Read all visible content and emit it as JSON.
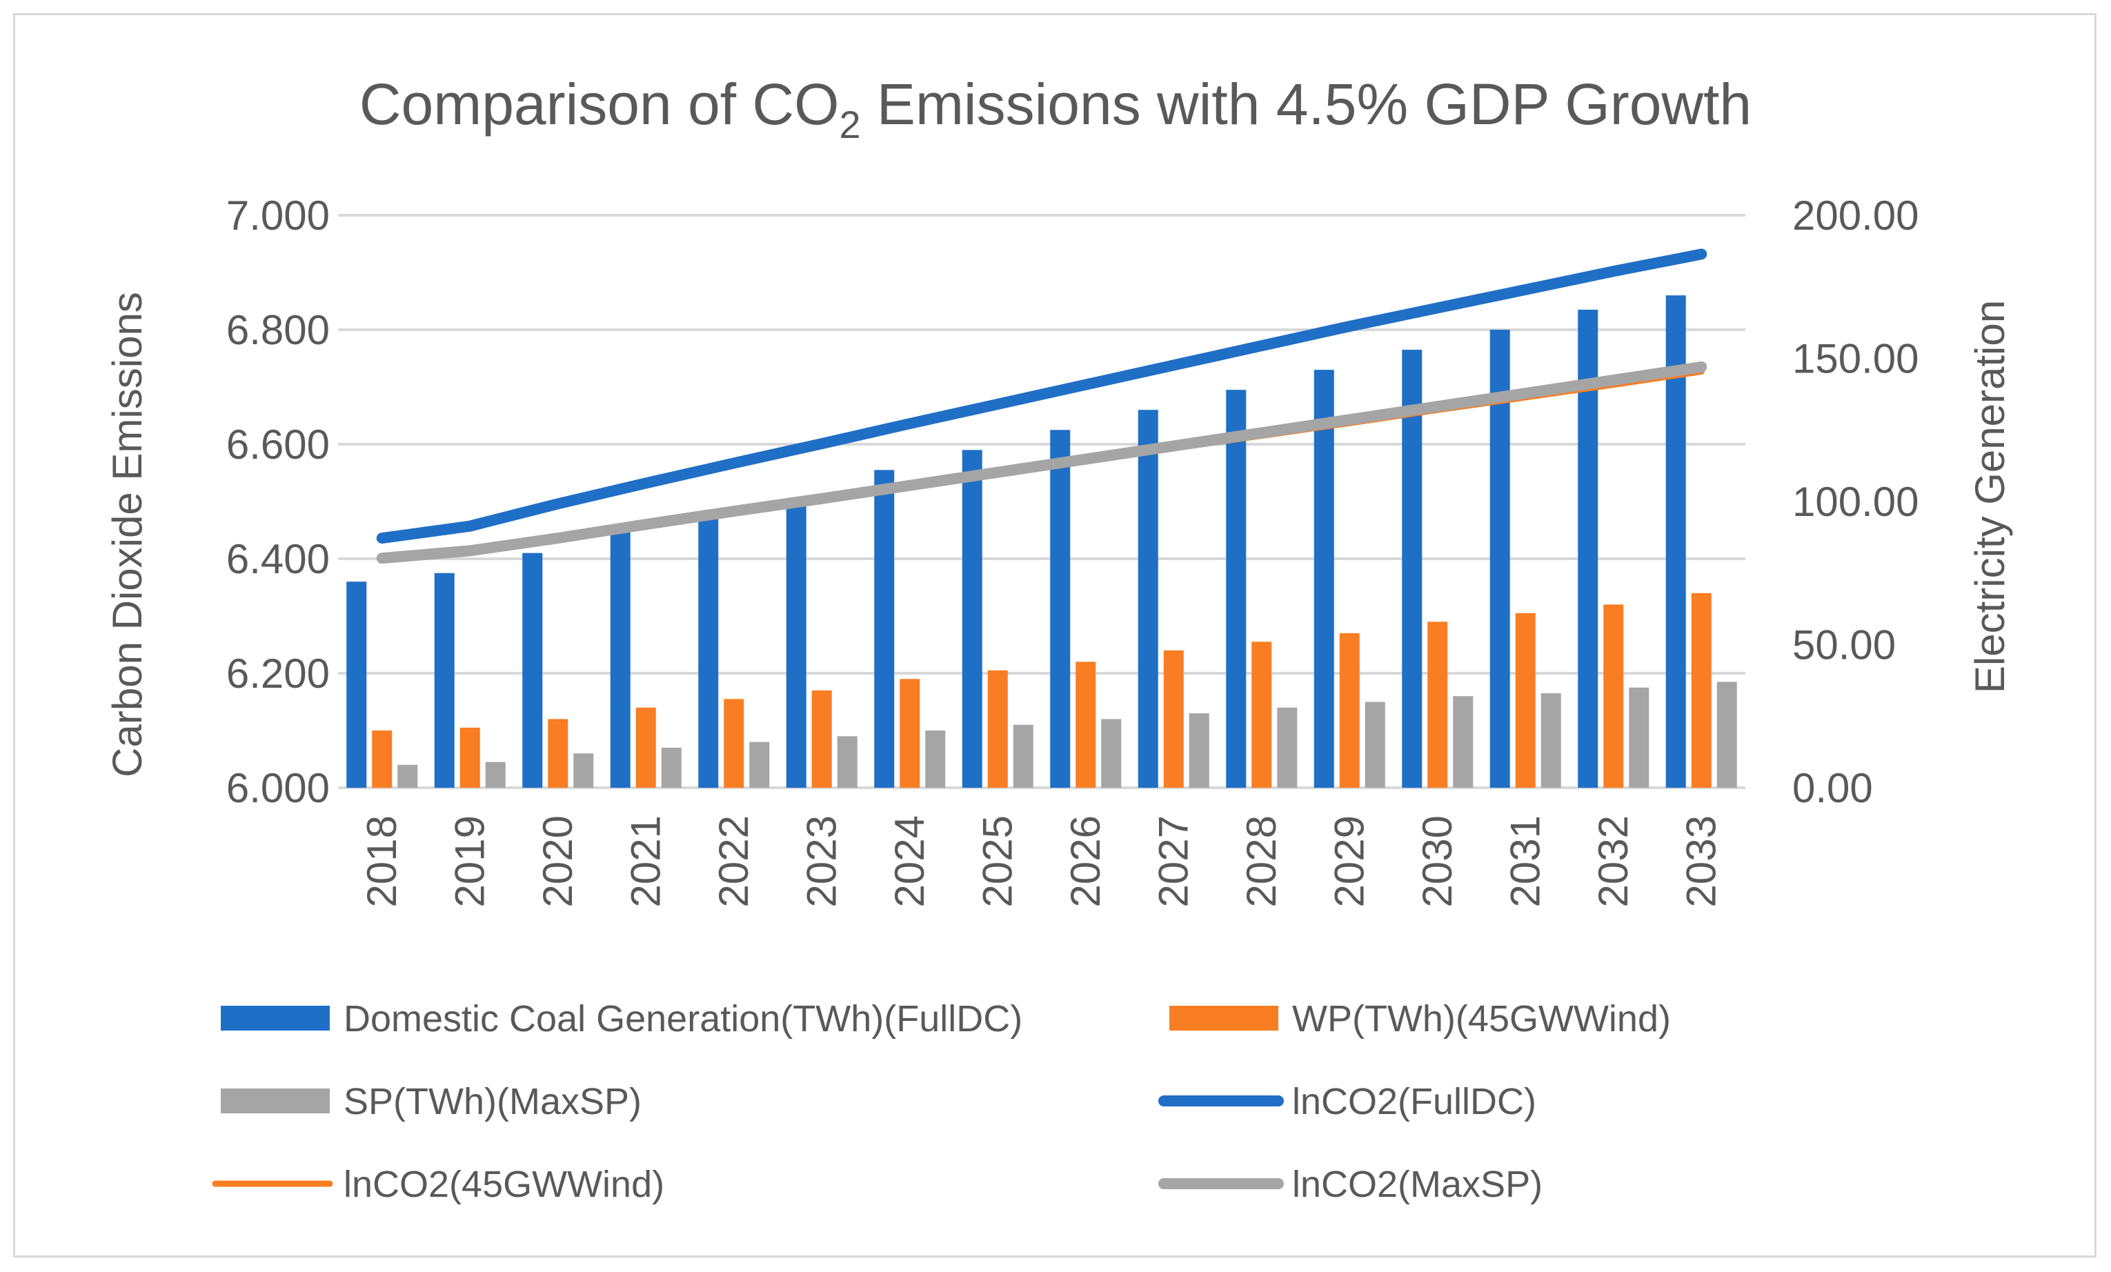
{
  "chart_data": {
    "type": "bar",
    "title": "Comparison of CO",
    "title_sub": "2",
    "title_rest": " Emissions with 4.5% GDP Growth",
    "ylabel": "Carbon Dioxide Emissions",
    "y2label": "Electricity Generation",
    "ylim": [
      6.0,
      7.0
    ],
    "y2lim": [
      0,
      200
    ],
    "yticks": [
      "6.000",
      "6.200",
      "6.400",
      "6.600",
      "6.800",
      "7.000"
    ],
    "y2ticks": [
      "0.00",
      "50.00",
      "100.00",
      "150.00",
      "200.00"
    ],
    "categories": [
      "2018",
      "2019",
      "2020",
      "2021",
      "2022",
      "2023",
      "2024",
      "2025",
      "2026",
      "2027",
      "2028",
      "2029",
      "2030",
      "2031",
      "2032",
      "2033"
    ],
    "bar_series": [
      {
        "name": "Domestic Coal Generation(TWh)(FullDC)",
        "color": "#1f6fc6",
        "values": [
          72,
          75,
          82,
          91,
          96,
          101,
          111,
          118,
          125,
          132,
          139,
          146,
          153,
          160,
          167,
          172
        ]
      },
      {
        "name": "WP(TWh)(45GWWind)",
        "color": "#f97d22",
        "values": [
          20,
          21,
          24,
          28,
          31,
          34,
          38,
          41,
          44,
          48,
          51,
          54,
          58,
          61,
          64,
          68
        ]
      },
      {
        "name": "SP(TWh)(MaxSP)",
        "color": "#a5a5a5",
        "values": [
          8,
          9,
          12,
          14,
          16,
          18,
          20,
          22,
          24,
          26,
          28,
          30,
          32,
          33,
          35,
          37
        ]
      }
    ],
    "line_series": [
      {
        "name": "lnCO2(FullDC)",
        "color": "#1f6fc6",
        "values": [
          6.436,
          6.457,
          6.496,
          6.532,
          6.567,
          6.601,
          6.636,
          6.67,
          6.704,
          6.738,
          6.772,
          6.806,
          6.838,
          6.87,
          6.902,
          6.932
        ]
      },
      {
        "name": "lnCO2(45GWWind)",
        "color": "#f97d22",
        "values": [
          6.4,
          6.412,
          6.433,
          6.458,
          6.48,
          6.502,
          6.525,
          6.547,
          6.57,
          6.593,
          6.615,
          6.637,
          6.66,
          6.682,
          6.704,
          6.727
        ]
      },
      {
        "name": "lnCO2(MaxSP)",
        "color": "#a5a5a5",
        "values": [
          6.401,
          6.414,
          6.436,
          6.46,
          6.483,
          6.505,
          6.528,
          6.551,
          6.574,
          6.597,
          6.62,
          6.643,
          6.666,
          6.689,
          6.712,
          6.735
        ]
      }
    ],
    "legend": [
      {
        "label": "Domestic Coal Generation(TWh)(FullDC)",
        "kind": "bar",
        "color": "#1f6fc6"
      },
      {
        "label": "WP(TWh)(45GWWind)",
        "kind": "bar",
        "color": "#f97d22"
      },
      {
        "label": "SP(TWh)(MaxSP)",
        "kind": "bar",
        "color": "#a5a5a5"
      },
      {
        "label": "lnCO2(FullDC)",
        "kind": "line",
        "color": "#1f6fc6"
      },
      {
        "label": "lnCO2(45GWWind)",
        "kind": "line",
        "color": "#f97d22"
      },
      {
        "label": "lnCO2(MaxSP)",
        "kind": "line",
        "color": "#a5a5a5"
      }
    ],
    "legend_position": "bottom",
    "grid": true
  }
}
